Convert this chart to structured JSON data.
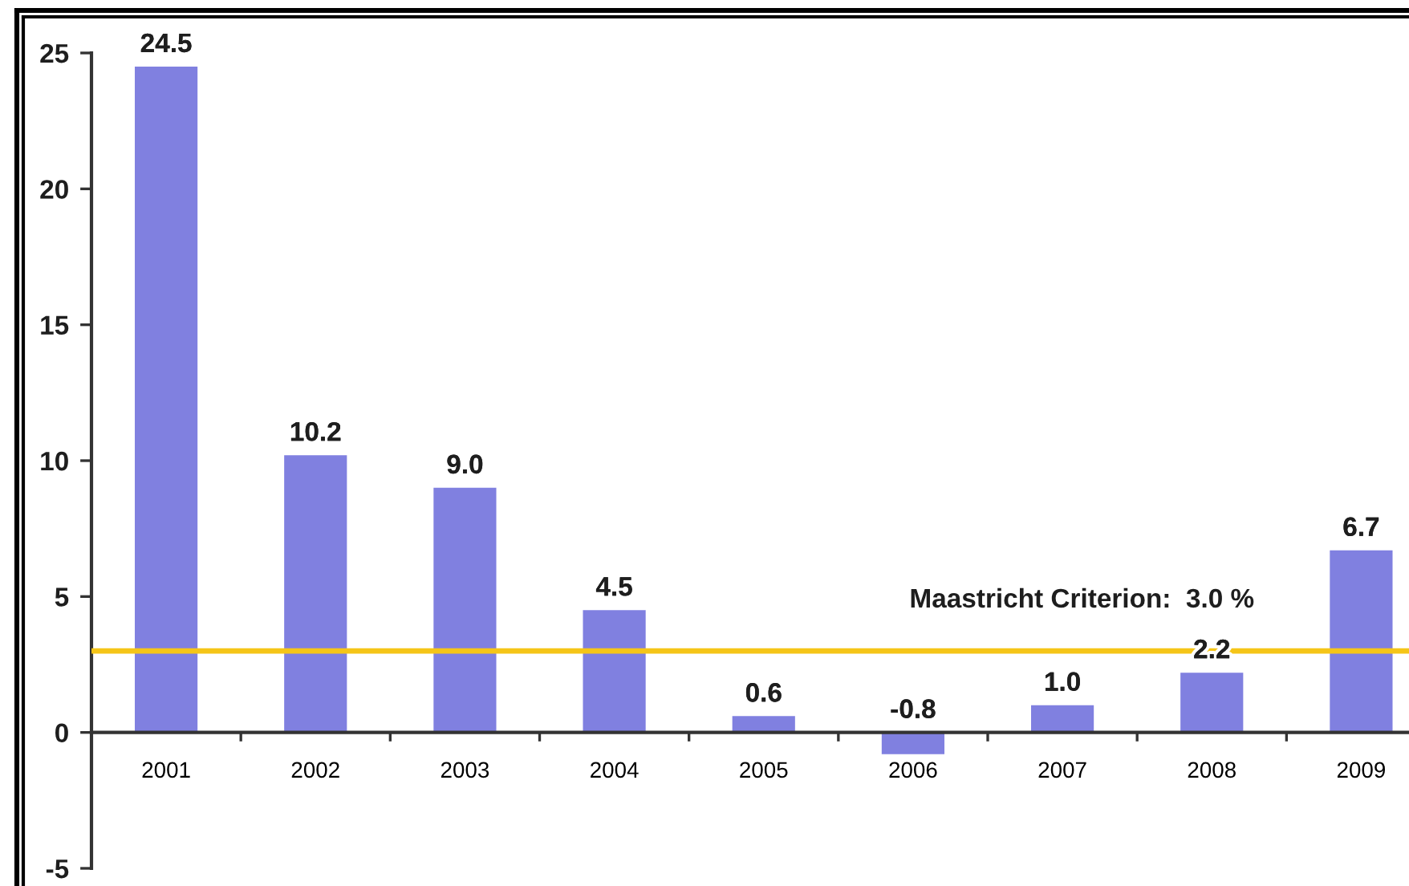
{
  "chart_data": {
    "type": "bar",
    "categories": [
      "2001",
      "2002",
      "2003",
      "2004",
      "2005",
      "2006",
      "2007",
      "2008",
      "2009"
    ],
    "values": [
      24.5,
      10.2,
      9.0,
      4.5,
      0.6,
      -0.8,
      1.0,
      2.2,
      6.7
    ],
    "color": "#8080e0",
    "value_labels": [
      "24.5",
      "10.2",
      "9.0",
      "4.5",
      "0.6",
      "-0.8",
      "1.0",
      "2.2",
      "6.7"
    ],
    "ylim": [
      -5,
      25
    ],
    "yticks": [
      -5,
      0,
      5,
      10,
      15,
      20,
      25
    ],
    "ref_lines": [
      {
        "axis": "y",
        "value": 3.0,
        "label": "Maastricht Criterion:  3.0 %",
        "color": "#f5c518"
      }
    ]
  }
}
